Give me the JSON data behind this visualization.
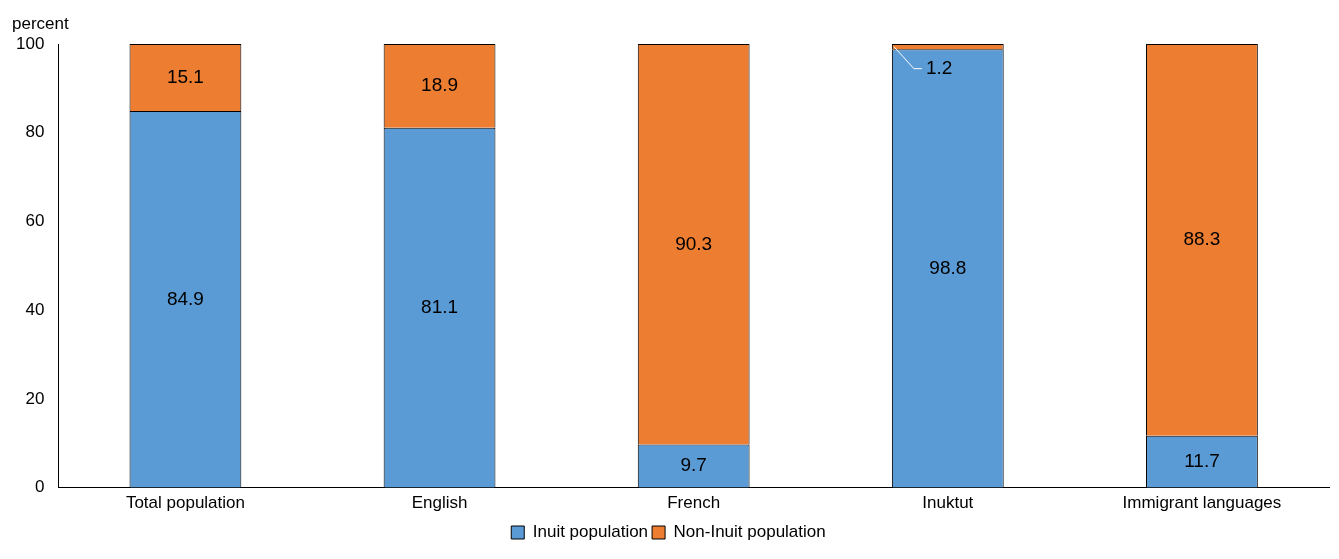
{
  "chart_data": {
    "type": "bar",
    "ylabel": "percent",
    "categories": [
      "Total population",
      "English",
      "French",
      "Inuktut",
      "Immigrant languages"
    ],
    "series": [
      {
        "name": "Inuit population",
        "color": "#5b9bd5",
        "values": [
          84.9,
          81.1,
          9.7,
          98.8,
          11.7
        ]
      },
      {
        "name": "Non-Inuit population",
        "color": "#ed7d31",
        "values": [
          15.1,
          18.9,
          90.3,
          1.2,
          88.3
        ]
      }
    ],
    "stacked": true,
    "ylim": [
      0,
      100
    ],
    "yticks": [
      0,
      20,
      40,
      60,
      80,
      100
    ],
    "grid": false,
    "legend": "bottom",
    "data_labels": true
  }
}
